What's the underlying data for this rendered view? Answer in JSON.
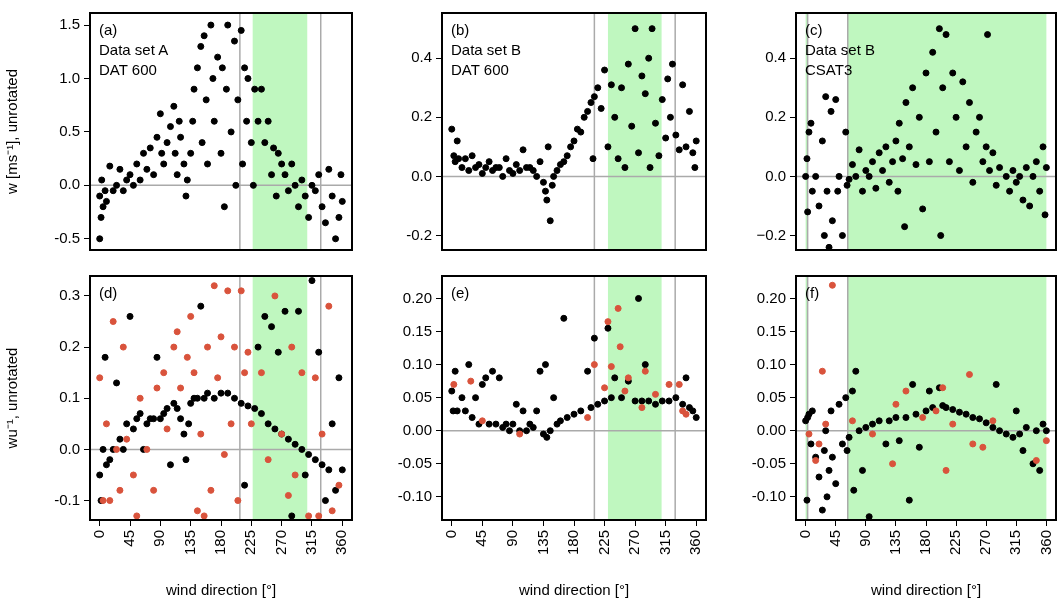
{
  "chart_data": [
    {
      "type": "scatter",
      "ylabel": "w [ms⁻¹], unrotated",
      "annotations": [
        "(a)",
        "Data set A",
        "DAT 600"
      ],
      "xlim": [
        -14.4,
        374.4
      ],
      "xticks": [
        0,
        45,
        90,
        135,
        180,
        225,
        270,
        315,
        360
      ],
      "ylim": [
        -0.605,
        1.613
      ],
      "yticks": [
        {
          "value": -0.5,
          "label": "-0.5"
        },
        {
          "value": 0,
          "label": "0.0"
        },
        {
          "value": 0.5,
          "label": "0.5"
        },
        {
          "value": 1,
          "label": "1.0"
        },
        {
          "value": 1.5,
          "label": "1.5"
        }
      ],
      "tick_labels": "y",
      "grid": false,
      "legend": false,
      "marker": "circle",
      "ref_lines": [
        {
          "axis": "y",
          "value": 0,
          "color": "#aaaaaa"
        },
        {
          "axis": "x",
          "value": 208,
          "color": "#aaaaaa"
        },
        {
          "axis": "x",
          "value": 328,
          "color": "#aaaaaa"
        }
      ],
      "bands": [
        {
          "axis": "x",
          "from": 227,
          "to": 308,
          "color": "#bff7bf"
        }
      ],
      "series": [
        {
          "color": "#000000",
          "x": [
            0,
            0,
            2,
            3,
            5,
            8,
            10,
            15,
            20,
            25,
            30,
            35,
            40,
            45,
            50,
            55,
            60,
            65,
            70,
            75,
            80,
            85,
            90,
            92,
            95,
            100,
            105,
            110,
            112,
            115,
            118,
            120,
            125,
            128,
            130,
            135,
            138,
            140,
            145,
            150,
            152,
            155,
            158,
            160,
            165,
            168,
            170,
            175,
            180,
            182,
            185,
            188,
            190,
            195,
            200,
            202,
            205,
            210,
            212,
            215,
            218,
            220,
            225,
            228,
            230,
            235,
            240,
            245,
            250,
            255,
            258,
            262,
            265,
            270,
            275,
            280,
            285,
            290,
            295,
            300,
            305,
            310,
            315,
            320,
            325,
            330,
            335,
            340,
            345,
            350,
            355,
            358,
            360
          ],
          "values": [
            -0.1,
            -0.5,
            -0.3,
            0.05,
            -0.2,
            -0.05,
            -0.15,
            0.18,
            -0.05,
            0,
            0.15,
            -0.05,
            0.05,
            0.1,
            0,
            0.2,
            0.05,
            0.3,
            0.15,
            0.35,
            0.1,
            0.45,
            0.67,
            0.3,
            0.2,
            0.4,
            0.55,
            0.74,
            0.3,
            0.1,
            0.6,
            0.45,
            0.2,
            -0.1,
            0.05,
            0.3,
            0.6,
            0.9,
            1.1,
            1.3,
            0.4,
            1.4,
            0.8,
            0.2,
            1.5,
            1,
            0.6,
            1.2,
            0.3,
            1.1,
            -0.2,
            0.9,
            1.5,
            0.5,
            1.35,
            0,
            0.8,
            1.45,
            0.2,
            1.1,
            0.6,
            1,
            0.4,
            0,
            0.9,
            0.6,
            0.9,
            0.4,
            0.6,
            0.1,
            0.35,
            -0.1,
            0.3,
            0.2,
            0.1,
            -0.05,
            0.2,
            0,
            -0.2,
            0.05,
            -0.1,
            -0.3,
            0,
            -0.05,
            0.1,
            -0.2,
            -0.35,
            0.15,
            -0.1,
            -0.5,
            -0.3,
            0.1,
            -0.15
          ]
        }
      ]
    },
    {
      "type": "scatter",
      "annotations": [
        "(b)",
        "Data set B",
        "DAT 600"
      ],
      "xlim": [
        -14.4,
        374.4
      ],
      "xticks": [
        0,
        45,
        90,
        135,
        180,
        225,
        270,
        315,
        360
      ],
      "ylim": [
        -0.249,
        0.553
      ],
      "yticks": [
        {
          "value": -0.2,
          "label": "-0.2"
        },
        {
          "value": 0,
          "label": "0.0"
        },
        {
          "value": 0.2,
          "label": "0.2"
        },
        {
          "value": 0.4,
          "label": "0.4"
        }
      ],
      "tick_labels": "y",
      "grid": false,
      "legend": false,
      "marker": "circle",
      "ref_lines": [
        {
          "axis": "y",
          "value": 0,
          "color": "#aaaaaa"
        },
        {
          "axis": "x",
          "value": 210,
          "color": "#aaaaaa"
        },
        {
          "axis": "x",
          "value": 329,
          "color": "#aaaaaa"
        }
      ],
      "bands": [
        {
          "axis": "x",
          "from": 230,
          "to": 309,
          "color": "#bff7bf"
        }
      ],
      "series": [
        {
          "color": "#000000",
          "x": [
            0,
            3,
            5,
            8,
            10,
            15,
            20,
            25,
            30,
            35,
            40,
            45,
            50,
            55,
            60,
            65,
            70,
            75,
            80,
            85,
            90,
            95,
            100,
            105,
            110,
            115,
            120,
            125,
            130,
            135,
            138,
            140,
            142,
            145,
            148,
            150,
            155,
            160,
            165,
            170,
            175,
            180,
            185,
            190,
            195,
            200,
            205,
            208,
            210,
            215,
            220,
            225,
            230,
            235,
            240,
            245,
            250,
            255,
            260,
            265,
            270,
            275,
            280,
            285,
            290,
            292,
            295,
            300,
            305,
            310,
            315,
            318,
            322,
            325,
            330,
            335,
            340,
            345,
            350,
            355,
            358,
            360
          ],
          "values": [
            0.16,
            0.07,
            0.05,
            0.12,
            0.06,
            0.03,
            0.06,
            0.02,
            0.07,
            0.03,
            0.04,
            0.01,
            0.03,
            0.05,
            0.02,
            0.03,
            0.03,
            0,
            0.06,
            0.02,
            0.01,
            0.04,
            0.02,
            0.09,
            0.03,
            0.03,
            0.02,
            0,
            0.05,
            -0.02,
            -0.05,
            -0.08,
            0.1,
            -0.15,
            -0.03,
            0,
            0.02,
            0.04,
            0.05,
            0.07,
            0.1,
            0.12,
            0.16,
            0.15,
            0.2,
            0.22,
            0.25,
            0.06,
            0.27,
            0.3,
            0.23,
            0.36,
            0.1,
            0.31,
            0.2,
            0.06,
            0.3,
            0.03,
            0.38,
            0.17,
            0.5,
            0.08,
            0.34,
            0.28,
            0.4,
            0.03,
            0.5,
            0.18,
            0.07,
            0.26,
            0.13,
            0.33,
            0.2,
            0.38,
            0.14,
            0.09,
            0.31,
            0.1,
            0.22,
            0.08,
            0.03,
            0.12
          ]
        }
      ]
    },
    {
      "type": "scatter",
      "annotations": [
        "(c)",
        "Data set B",
        "CSAT3"
      ],
      "xlim": [
        -14.4,
        374.4
      ],
      "xticks": [
        0,
        45,
        90,
        135,
        180,
        225,
        270,
        315,
        360
      ],
      "ylim": [
        -0.249,
        0.553
      ],
      "yticks": [
        {
          "value": -0.2,
          "label": "−0.2"
        },
        {
          "value": 0,
          "label": "0.0"
        },
        {
          "value": 0.2,
          "label": "0.2"
        },
        {
          "value": 0.4,
          "label": "0.4"
        }
      ],
      "tick_labels": "y",
      "grid": false,
      "legend": false,
      "marker": "circle",
      "ref_lines": [
        {
          "axis": "y",
          "value": 0,
          "color": "#aaaaaa"
        },
        {
          "axis": "x",
          "value": 3,
          "color": "#aaaaaa"
        },
        {
          "axis": "x",
          "value": 63,
          "color": "#aaaaaa"
        }
      ],
      "bands": [
        {
          "axis": "x",
          "from": 0,
          "to": 3,
          "color": "#bff7bf"
        },
        {
          "axis": "x",
          "from": 63,
          "to": 360,
          "color": "#bff7bf"
        }
      ],
      "series": [
        {
          "color": "#000000",
          "x": [
            0,
            2,
            3,
            5,
            8,
            10,
            15,
            20,
            25,
            28,
            30,
            32,
            35,
            38,
            40,
            45,
            48,
            50,
            55,
            60,
            62,
            65,
            70,
            75,
            80,
            85,
            90,
            95,
            100,
            105,
            110,
            115,
            120,
            125,
            130,
            135,
            138,
            140,
            145,
            148,
            150,
            155,
            160,
            165,
            170,
            175,
            180,
            185,
            190,
            195,
            200,
            202,
            205,
            210,
            215,
            220,
            225,
            230,
            235,
            240,
            245,
            250,
            255,
            260,
            265,
            270,
            272,
            275,
            280,
            285,
            290,
            300,
            305,
            310,
            315,
            320,
            325,
            330,
            335,
            340,
            345,
            350,
            355,
            358,
            360
          ],
          "values": [
            0,
            0.06,
            -0.12,
            0.15,
            0.18,
            -0.05,
            0,
            -0.1,
            0.12,
            -0.2,
            0.27,
            -0.05,
            -0.24,
            0.22,
            -0.15,
            0.26,
            -0.05,
            0,
            -0.2,
            0.15,
            -0.03,
            -0.01,
            0.04,
            0,
            0.09,
            -0.05,
            0.02,
            0,
            0.05,
            -0.04,
            0.08,
            0.02,
            0.1,
            -0.02,
            0.05,
            0.12,
            -0.05,
            0.18,
            0.06,
            -0.17,
            0.25,
            0.1,
            0.3,
            0.04,
            0.2,
            -0.11,
            0.35,
            0.05,
            0.42,
            0.15,
            0.5,
            -0.2,
            0.3,
            0.48,
            0.05,
            0.35,
            0.2,
            0.02,
            0.32,
            0.1,
            0.25,
            -0.02,
            0.15,
            0.2,
            0.05,
            0.1,
            0.48,
            0.02,
            0.08,
            -0.03,
            0.03,
            0,
            -0.05,
            0.02,
            -0.02,
            0,
            -0.08,
            0.03,
            -0.1,
            0,
            0.05,
            -0.05,
            0.1,
            -0.13,
            0.03
          ]
        }
      ]
    },
    {
      "type": "scatter",
      "ylabel": "wu⁻¹, unrotated",
      "annotations": [
        "(d)"
      ],
      "xlabel": "wind direction [°]",
      "xlim": [
        -14.4,
        374.4
      ],
      "xticks": [
        0,
        45,
        90,
        135,
        180,
        225,
        270,
        315,
        360
      ],
      "ylim": [
        -0.138,
        0.339
      ],
      "yticks": [
        {
          "value": -0.1,
          "label": "-0.1"
        },
        {
          "value": 0,
          "label": "0.0"
        },
        {
          "value": 0.1,
          "label": "0.1"
        },
        {
          "value": 0.2,
          "label": "0.2"
        },
        {
          "value": 0.3,
          "label": "0.3"
        }
      ],
      "grid": false,
      "legend": false,
      "marker": "circle",
      "ref_lines": [
        {
          "axis": "y",
          "value": 0,
          "color": "#aaaaaa"
        },
        {
          "axis": "x",
          "value": 208,
          "color": "#aaaaaa"
        },
        {
          "axis": "x",
          "value": 328,
          "color": "#aaaaaa"
        }
      ],
      "bands": [
        {
          "axis": "x",
          "from": 227,
          "to": 308,
          "color": "#bff7bf"
        }
      ],
      "series": [
        {
          "color": "#d9533c",
          "x": [
            0,
            5,
            10,
            15,
            20,
            25,
            30,
            35,
            40,
            50,
            55,
            60,
            70,
            80,
            85,
            95,
            100,
            110,
            115,
            120,
            130,
            135,
            140,
            145,
            150,
            155,
            160,
            165,
            170,
            175,
            180,
            185,
            190,
            195,
            200,
            205,
            210,
            215,
            220,
            225,
            240,
            250,
            260,
            270,
            280,
            285,
            290,
            300,
            310,
            320,
            325,
            330,
            340,
            345,
            355
          ],
          "values": [
            0.14,
            -0.1,
            0.05,
            -0.1,
            0.25,
            0,
            -0.08,
            0.2,
            0.02,
            -0.05,
            -0.13,
            0.1,
            0,
            -0.08,
            0.12,
            0.15,
            0.04,
            0.2,
            0.23,
            0.12,
            0.18,
            0.26,
            0.15,
            -0.12,
            0.03,
            -0.13,
            0.2,
            -0.08,
            0.32,
            0.14,
            0.22,
            -0.01,
            0.31,
            0.05,
            0.2,
            -0.1,
            0.31,
            0.15,
            0.19,
            0.05,
            0.15,
            -0.02,
            0.3,
            0.03,
            -0.09,
            0.2,
            -0.05,
            0.15,
            -0.13,
            0.14,
            -0.13,
            0.03,
            0.28,
            -0.12,
            -0.07
          ]
        },
        {
          "color": "#000000",
          "x": [
            0,
            2,
            5,
            8,
            10,
            15,
            20,
            25,
            30,
            35,
            40,
            45,
            50,
            55,
            60,
            65,
            70,
            75,
            80,
            85,
            90,
            95,
            100,
            105,
            110,
            115,
            120,
            125,
            128,
            132,
            135,
            140,
            145,
            150,
            155,
            160,
            170,
            180,
            190,
            200,
            210,
            215,
            220,
            230,
            235,
            240,
            245,
            250,
            255,
            260,
            265,
            270,
            275,
            280,
            285,
            290,
            295,
            300,
            305,
            310,
            315,
            320,
            325,
            330,
            335,
            340,
            345,
            350,
            355,
            360
          ],
          "values": [
            -0.05,
            -0.1,
            0,
            0.18,
            -0.03,
            -0.02,
            0,
            0.13,
            0.02,
            0,
            0.05,
            0.26,
            0.04,
            0.06,
            0.07,
            0,
            0.05,
            0.06,
            0.06,
            0.18,
            0.06,
            0.07,
            0.08,
            -0.03,
            0.09,
            0.08,
            0.06,
            0.03,
            -0.02,
            0.05,
            0.09,
            0.1,
            0.1,
            0.28,
            0.1,
            0.11,
            0.1,
            0.11,
            0.11,
            0.1,
            0.09,
            -0.07,
            0.085,
            0.08,
            0.2,
            0.07,
            0.26,
            0.05,
            0.24,
            0.04,
            0.19,
            0.03,
            0.27,
            0.02,
            -0.13,
            0.01,
            0.27,
            0,
            -0.05,
            -0.01,
            0.33,
            -0.02,
            0.19,
            -0.03,
            -0.1,
            -0.04,
            0.05,
            -0.08,
            0.14,
            -0.04
          ]
        }
      ]
    },
    {
      "type": "scatter",
      "annotations": [
        "(e)"
      ],
      "xlabel": "wind direction [°]",
      "xlim": [
        -14.4,
        374.4
      ],
      "xticks": [
        0,
        45,
        90,
        135,
        180,
        225,
        270,
        315,
        360
      ],
      "ylim": [
        -0.135,
        0.234
      ],
      "yticks": [
        {
          "value": -0.1,
          "label": "-0.10"
        },
        {
          "value": -0.05,
          "label": "-0.05"
        },
        {
          "value": 0,
          "label": "0.00"
        },
        {
          "value": 0.05,
          "label": "0.05"
        },
        {
          "value": 0.1,
          "label": "0.10"
        },
        {
          "value": 0.15,
          "label": "0.15"
        },
        {
          "value": 0.2,
          "label": "0.20"
        }
      ],
      "grid": false,
      "legend": false,
      "marker": "circle",
      "ref_lines": [
        {
          "axis": "y",
          "value": 0,
          "color": "#aaaaaa"
        },
        {
          "axis": "x",
          "value": 210,
          "color": "#aaaaaa"
        },
        {
          "axis": "x",
          "value": 329,
          "color": "#aaaaaa"
        }
      ],
      "bands": [
        {
          "axis": "x",
          "from": 230,
          "to": 309,
          "color": "#bff7bf"
        }
      ],
      "series": [
        {
          "color": "#d9533c",
          "x": [
            3,
            28,
            45,
            100,
            200,
            210,
            225,
            230,
            235,
            245,
            248,
            255,
            260,
            280,
            285,
            300,
            320,
            335,
            340,
            345
          ],
          "values": [
            0.07,
            0.075,
            0.015,
            -0.005,
            0.02,
            0.1,
            0.065,
            0.165,
            0.097,
            0.185,
            0.127,
            0.06,
            0.08,
            0.035,
            0.09,
            0.055,
            0.07,
            0.07,
            0.03,
            0.025
          ]
        },
        {
          "color": "#000000",
          "x": [
            0,
            2,
            5,
            8,
            15,
            20,
            25,
            30,
            35,
            40,
            45,
            50,
            55,
            60,
            65,
            70,
            75,
            80,
            85,
            90,
            95,
            100,
            105,
            110,
            115,
            120,
            125,
            130,
            135,
            138,
            140,
            145,
            150,
            155,
            160,
            165,
            170,
            180,
            190,
            200,
            205,
            210,
            215,
            225,
            230,
            235,
            240,
            250,
            260,
            270,
            275,
            280,
            285,
            290,
            300,
            310,
            320,
            330,
            340,
            345,
            350,
            355,
            360
          ],
          "values": [
            0.06,
            0.03,
            0.09,
            0.03,
            0.05,
            0.03,
            0.1,
            0.02,
            0.05,
            0.01,
            0.07,
            0.08,
            0.01,
            0.09,
            0.01,
            0.08,
            0.005,
            0.01,
            0,
            0.01,
            0.04,
            0,
            0.03,
            0,
            0.01,
            0.005,
            0.03,
            0.09,
            -0.005,
            0.1,
            -0.01,
            0,
            0.05,
            0.01,
            0.015,
            0.17,
            0.02,
            0.025,
            0.03,
            0.09,
            0.035,
            0.14,
            0.04,
            0.045,
            0.155,
            0.05,
            0.08,
            0.05,
            0.075,
            0.045,
            0.2,
            0.045,
            0.1,
            0.045,
            0.04,
            0.045,
            0.045,
            0.05,
            0.04,
            0.08,
            0.035,
            0.03,
            0.02
          ]
        }
      ]
    },
    {
      "type": "scatter",
      "annotations": [
        "(f)"
      ],
      "xlabel": "wind direction [°]",
      "xlim": [
        -14.4,
        374.4
      ],
      "xticks": [
        0,
        45,
        90,
        135,
        180,
        225,
        270,
        315,
        360
      ],
      "ylim": [
        -0.135,
        0.234
      ],
      "yticks": [
        {
          "value": -0.1,
          "label": "-0.10"
        },
        {
          "value": -0.05,
          "label": "-0.05"
        },
        {
          "value": 0,
          "label": "0.00"
        },
        {
          "value": 0.05,
          "label": "0.05"
        },
        {
          "value": 0.1,
          "label": "0.10"
        },
        {
          "value": 0.15,
          "label": "0.15"
        },
        {
          "value": 0.2,
          "label": "0.20"
        }
      ],
      "grid": false,
      "legend": false,
      "marker": "circle",
      "ref_lines": [
        {
          "axis": "y",
          "value": 0,
          "color": "#aaaaaa"
        },
        {
          "axis": "x",
          "value": 3,
          "color": "#aaaaaa"
        },
        {
          "axis": "x",
          "value": 63,
          "color": "#aaaaaa"
        }
      ],
      "bands": [
        {
          "axis": "x",
          "from": 0,
          "to": 3,
          "color": "#bff7bf"
        },
        {
          "axis": "x",
          "from": 63,
          "to": 360,
          "color": "#bff7bf"
        }
      ],
      "series": [
        {
          "color": "#d9533c",
          "x": [
            5,
            15,
            20,
            25,
            30,
            40,
            70,
            100,
            130,
            135,
            150,
            175,
            195,
            205,
            210,
            220,
            245,
            250,
            265,
            280,
            345,
            360
          ],
          "values": [
            -0.005,
            -0.045,
            -0.02,
            0.09,
            0.01,
            0.22,
            0.015,
            -0.005,
            -0.05,
            0.04,
            0.06,
            0.02,
            0.03,
            0.065,
            -0.06,
            0.01,
            0.085,
            -0.02,
            -0.025,
            0.015,
            -0.045,
            -0.015
          ]
        },
        {
          "color": "#000000",
          "x": [
            0,
            2,
            3,
            5,
            8,
            10,
            15,
            20,
            25,
            28,
            30,
            32,
            35,
            38,
            40,
            45,
            50,
            55,
            60,
            62,
            65,
            70,
            72,
            75,
            80,
            85,
            90,
            95,
            100,
            110,
            120,
            125,
            135,
            140,
            150,
            155,
            160,
            165,
            170,
            180,
            185,
            190,
            200,
            205,
            210,
            220,
            230,
            240,
            250,
            260,
            270,
            280,
            285,
            290,
            300,
            310,
            315,
            320,
            325,
            330,
            340,
            345,
            350,
            355,
            360
          ],
          "values": [
            0.015,
            -0.105,
            0.02,
            0.025,
            -0.02,
            0.03,
            -0.04,
            -0.07,
            -0.12,
            -0.03,
            0,
            -0.1,
            -0.06,
            0.03,
            -0.04,
            -0.08,
            0.04,
            -0.02,
            0.05,
            -0.03,
            -0.01,
            0.06,
            -0.09,
            0.09,
            0,
            -0.06,
            0.005,
            -0.13,
            0.01,
            0.015,
            -0.02,
            0.015,
            0.02,
            -0.015,
            0.02,
            -0.105,
            0.07,
            0.025,
            -0.025,
            0.03,
            0.06,
            0.035,
            0.065,
            0.038,
            0.035,
            0.032,
            0.028,
            0.025,
            0.02,
            0.018,
            0.012,
            0.005,
            0.07,
            0,
            -0.005,
            -0.01,
            0.03,
            -0.005,
            -0.03,
            0.005,
            -0.05,
            0,
            -0.06,
            0.01,
            0
          ]
        }
      ]
    }
  ]
}
